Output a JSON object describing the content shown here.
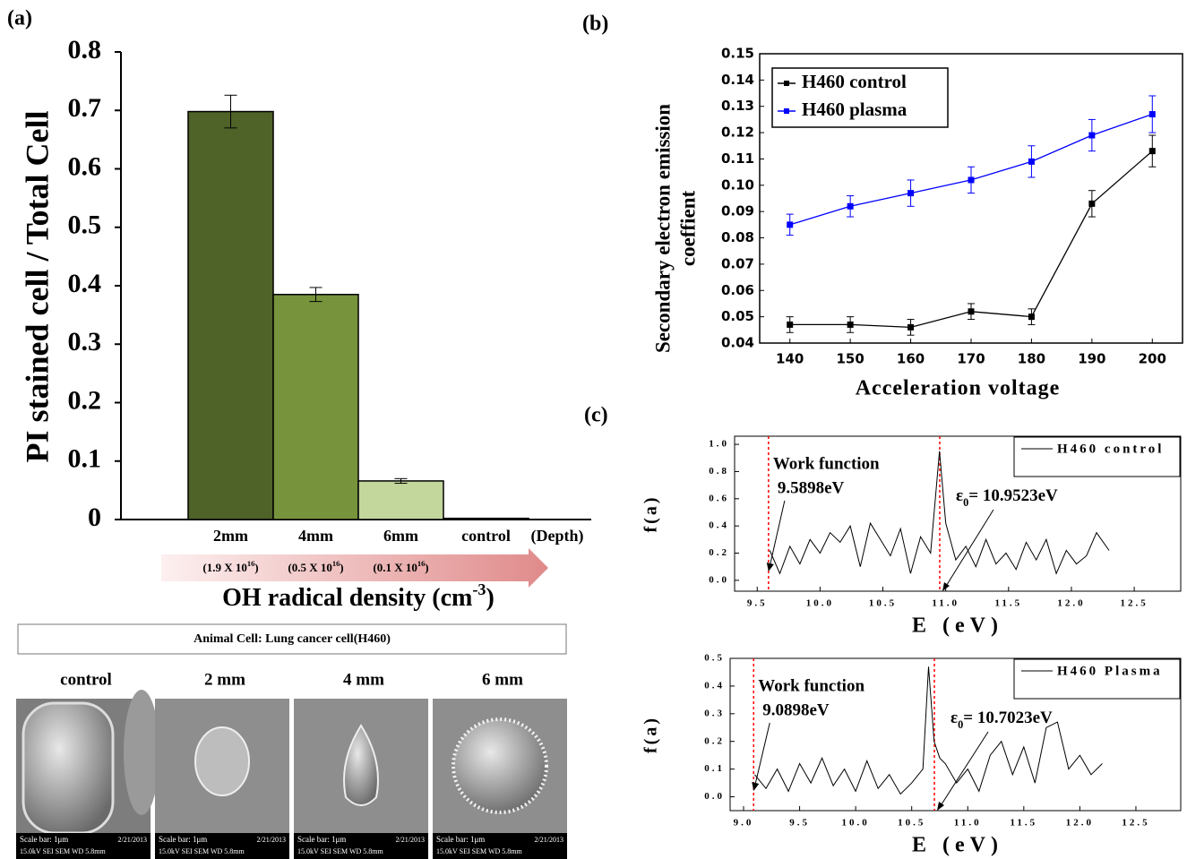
{
  "chart_data": [
    {
      "type": "bar",
      "panel_label": "(a)",
      "y_label": "PI stained cell  / Total Cell",
      "categories": [
        "2mm",
        "4mm",
        "6mm",
        "control"
      ],
      "values": [
        0.698,
        0.385,
        0.066,
        0.002
      ],
      "errors": [
        0.028,
        0.012,
        0.004,
        0
      ],
      "colors": [
        "#4f6228",
        "#77933c",
        "#c3d69b",
        "#ffffff"
      ],
      "ylim": [
        0,
        0.8
      ],
      "yticks": [
        0,
        0.1,
        0.2,
        0.3,
        0.4,
        0.5,
        0.6,
        0.7,
        0.8
      ],
      "depth_label": "(Depth)",
      "densities": [
        {
          "text": "(1.9 X 10",
          "sup": "16",
          "end": ")"
        },
        {
          "text": "(0.5 X 10",
          "sup": "16",
          "end": ")"
        },
        {
          "text": "(0.1 X 10",
          "sup": "16",
          "end": ")"
        }
      ],
      "x_label": {
        "text": "OH radical density (cm",
        "sup": "-3",
        "end": ")"
      }
    },
    {
      "type": "line",
      "panel_label": "(b)",
      "y_label": [
        "Secondary electron emission",
        "coeffient"
      ],
      "x_label": "Acceleration voltage",
      "x": [
        140,
        150,
        160,
        170,
        180,
        190,
        200
      ],
      "series": [
        {
          "name": "H460 control",
          "color": "#000000",
          "values": [
            0.047,
            0.047,
            0.046,
            0.052,
            0.05,
            0.093,
            0.113
          ],
          "errors": [
            0.003,
            0.003,
            0.003,
            0.003,
            0.003,
            0.005,
            0.006
          ]
        },
        {
          "name": "H460 plasma",
          "color": "#0000ff",
          "values": [
            0.085,
            0.092,
            0.097,
            0.102,
            0.109,
            0.119,
            0.127
          ],
          "errors": [
            0.004,
            0.004,
            0.005,
            0.005,
            0.006,
            0.006,
            0.007
          ]
        }
      ],
      "markers": "square",
      "xlim": [
        135,
        205
      ],
      "xticks": [
        140,
        150,
        160,
        170,
        180,
        190,
        200
      ],
      "ylim": [
        0.04,
        0.15
      ],
      "yticks": [
        0.04,
        0.05,
        0.06,
        0.07,
        0.08,
        0.09,
        {
          "value": 0.1,
          "label": "0.10"
        },
        0.11,
        0.12,
        0.13,
        0.14,
        0.15
      ]
    },
    {
      "type": "line",
      "panel_label": "(c)",
      "y_label": "f(a)",
      "x_label": "E (eV)",
      "x": [
        9.6,
        9.68,
        9.76,
        9.84,
        9.92,
        10.0,
        10.08,
        10.16,
        10.24,
        10.32,
        10.4,
        10.48,
        10.56,
        10.64,
        10.72,
        10.8,
        10.88,
        10.95,
        11.0,
        11.08,
        11.16,
        11.24,
        11.32,
        11.4,
        11.48,
        11.56,
        11.64,
        11.72,
        11.8,
        11.88,
        11.96,
        12.04,
        12.12,
        12.2,
        12.3
      ],
      "series": [
        {
          "name": "H460 control",
          "color": "#000000",
          "values": [
            0.22,
            0.05,
            0.25,
            0.12,
            0.3,
            0.2,
            0.35,
            0.28,
            0.4,
            0.1,
            0.42,
            0.3,
            0.18,
            0.38,
            0.05,
            0.32,
            0.2,
            0.95,
            0.42,
            0.15,
            0.25,
            0.1,
            0.3,
            0.12,
            0.2,
            0.08,
            0.28,
            0.15,
            0.3,
            0.05,
            0.22,
            0.12,
            0.18,
            0.35,
            0.22
          ]
        }
      ],
      "xlim": [
        9.32,
        12.87
      ],
      "xticks": [
        9.5,
        {
          "value": 10,
          "label": "10.0"
        },
        10.5,
        {
          "value": 11,
          "label": "11.0"
        },
        11.5,
        {
          "value": 12,
          "label": "12.0"
        },
        12.5
      ],
      "ylim": [
        -0.08,
        1.06
      ],
      "yticks": [
        {
          "value": 0,
          "label": "0.0"
        },
        0.2,
        0.4,
        0.6,
        0.8,
        {
          "value": 1,
          "label": "1.0"
        }
      ],
      "vline_color": "#ff0000",
      "work_function": {
        "title": "Work function",
        "label": "9.5898eV",
        "value": 9.5898
      },
      "epsilon": {
        "symbol": "ε",
        "subscript": "0",
        "label": "= 10.9523eV",
        "value": 10.9523
      }
    },
    {
      "type": "line",
      "y_label": "f(a)",
      "x_label": "E (eV)",
      "x": [
        9.1,
        9.2,
        9.3,
        9.4,
        9.5,
        9.6,
        9.7,
        9.8,
        9.9,
        10.0,
        10.1,
        10.2,
        10.3,
        10.4,
        10.5,
        10.6,
        10.65,
        10.7,
        10.75,
        10.8,
        10.9,
        11.0,
        11.1,
        11.2,
        11.3,
        11.4,
        11.5,
        11.6,
        11.7,
        11.8,
        11.9,
        12.0,
        12.1,
        12.2
      ],
      "series": [
        {
          "name": "H460 Plasma",
          "color": "#000000",
          "values": [
            0.08,
            0.03,
            0.1,
            0.02,
            0.12,
            0.05,
            0.14,
            0.04,
            0.1,
            0.02,
            0.13,
            0.03,
            0.08,
            0.01,
            0.05,
            0.1,
            0.47,
            0.2,
            0.14,
            0.12,
            0.05,
            0.1,
            0.02,
            0.15,
            0.2,
            0.08,
            0.18,
            0.05,
            0.25,
            0.27,
            0.1,
            0.15,
            0.08,
            0.12
          ]
        }
      ],
      "xlim": [
        8.88,
        12.9
      ],
      "xticks": [
        {
          "value": 9,
          "label": "9.0"
        },
        9.5,
        {
          "value": 10,
          "label": "10.0"
        },
        10.5,
        {
          "value": 11,
          "label": "11.0"
        },
        11.5,
        {
          "value": 12,
          "label": "12.0"
        },
        12.5
      ],
      "ylim": [
        -0.05,
        0.5
      ],
      "yticks": [
        {
          "value": 0,
          "label": "0.0"
        },
        0.1,
        0.2,
        0.3,
        0.4,
        0.5
      ],
      "vline_color": "#ff0000",
      "work_function": {
        "title": "Work function",
        "label": "9.0898eV",
        "value": 9.0898
      },
      "epsilon": {
        "symbol": "ε",
        "subscript": "0",
        "label": "= 10.7023eV",
        "value": 10.7023
      }
    }
  ],
  "image_panel": {
    "title": "Animal Cell: Lung cancer cell(H460)",
    "images": [
      {
        "label": "control",
        "scale": "Scale bar: 1μm",
        "date": "2/21/2013",
        "info": "15.0kV SEI SEM WD 5.8mm"
      },
      {
        "label": "2 mm",
        "scale": "Scale bar: 1μm",
        "date": "2/21/2013",
        "info": "15.0kV SEI SEM WD 5.8mm"
      },
      {
        "label": "4 mm",
        "scale": "Scale bar: 1μm",
        "date": "2/21/2013",
        "info": "15.0kV SEI SEM WD 5.8mm"
      },
      {
        "label": "6 mm",
        "scale": "Scale bar: 1μm",
        "date": "2/21/2013",
        "info": "15.0kV SEI SEM WD 5.8mm"
      }
    ]
  }
}
